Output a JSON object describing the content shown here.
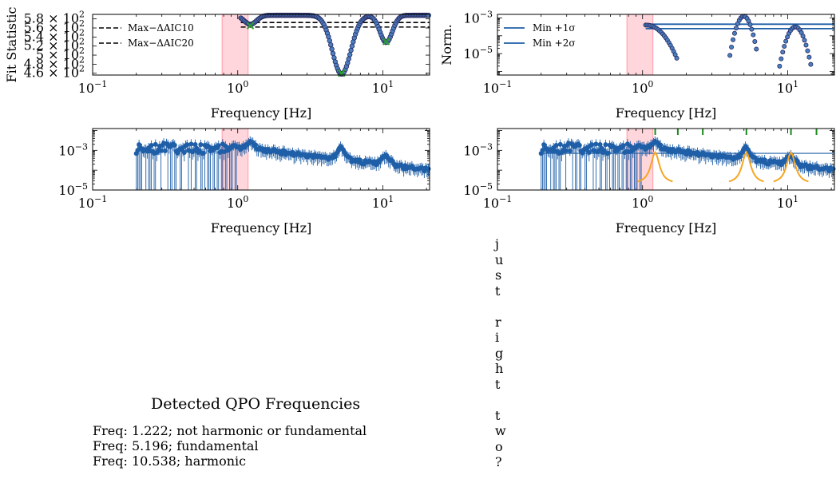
{
  "colors": {
    "data": "#1f5fa8",
    "marker_edge": "#2a2a60",
    "band": "#ffc0c8",
    "band_edge": "#ff8a9a",
    "dashed": "#000000",
    "cross": "#2ca02c",
    "orange": "#f5a623",
    "tick_green": "#1a8a1a"
  },
  "highlight_band_hz": [
    0.78,
    1.18
  ],
  "chart_data": [
    {
      "id": "fit-statistic",
      "type": "scatter",
      "xlabel": "Frequency [Hz]",
      "ylabel": "Fit Statistic",
      "xlim": [
        0.1,
        21
      ],
      "xscale": "log",
      "ylim": [
        456,
        590
      ],
      "x_ticks": [
        {
          "v": 0.1,
          "label": "10",
          "sup": "−1"
        },
        {
          "v": 1,
          "label": "10",
          "sup": "0"
        },
        {
          "v": 10,
          "label": "10",
          "sup": "1"
        }
      ],
      "y_ticks": [
        {
          "v": 460,
          "label": "4.6 × 10",
          "sup": "2"
        },
        {
          "v": 480,
          "label": "4.8 × 10",
          "sup": "2"
        },
        {
          "v": 500,
          "label": "5 × 10",
          "sup": "2"
        },
        {
          "v": 520,
          "label": "5.2 × 10",
          "sup": "2"
        },
        {
          "v": 540,
          "label": "5.4 × 10",
          "sup": "2"
        },
        {
          "v": 560,
          "label": "5.6 × 10",
          "sup": "2"
        },
        {
          "v": 580,
          "label": "5.8 × 10",
          "sup": "2"
        }
      ],
      "hlines": [
        {
          "name": "Max−ΔAIC10",
          "y": 572,
          "x_from": 1.05,
          "style": "dashed"
        },
        {
          "name": "Max−ΔAIC20",
          "y": 562,
          "x_from": 1.05,
          "style": "dashed"
        }
      ],
      "legend": [
        "Max−ΔAIC10",
        "Max−ΔAIC20"
      ],
      "legend_loc": "upper left",
      "minima": [
        {
          "x": 1.222,
          "y": 565
        },
        {
          "x": 5.196,
          "y": 460
        },
        {
          "x": 10.538,
          "y": 530
        }
      ]
    },
    {
      "id": "norm",
      "type": "scatter",
      "xlabel": "Frequency [Hz]",
      "ylabel": "Norm.",
      "xlim": [
        0.1,
        21
      ],
      "xscale": "log",
      "yscale": "log",
      "ylim_log10": [
        -6.2,
        -2.8
      ],
      "x_ticks": [
        {
          "v": 0.1,
          "label": "10",
          "sup": "−1"
        },
        {
          "v": 1,
          "label": "10",
          "sup": "0"
        },
        {
          "v": 10,
          "label": "10",
          "sup": "1"
        }
      ],
      "y_ticks": [
        {
          "v": -5,
          "label": "10",
          "sup": "−5"
        },
        {
          "v": -3,
          "label": "10",
          "sup": "−3"
        }
      ],
      "hlines": [
        {
          "name": "Min +1σ",
          "y_log10": -3.35,
          "x_from": 1.05
        },
        {
          "name": "Min +2σ",
          "y_log10": -3.6,
          "x_from": 1.05
        }
      ],
      "legend": [
        "Min +1σ",
        "Min +2σ"
      ],
      "legend_loc": "upper left"
    },
    {
      "id": "power-spectrum",
      "type": "scatter",
      "xlabel": "Frequency [Hz]",
      "xlim": [
        0.1,
        21
      ],
      "xscale": "log",
      "yscale": "log",
      "ylim_log10": [
        -5,
        -1.9
      ],
      "x_ticks": [
        {
          "v": 0.1,
          "label": "10",
          "sup": "−1"
        },
        {
          "v": 1,
          "label": "10",
          "sup": "0"
        },
        {
          "v": 10,
          "label": "10",
          "sup": "1"
        }
      ],
      "y_ticks": [
        {
          "v": -5,
          "label": "10",
          "sup": "−5"
        },
        {
          "v": -3,
          "label": "10",
          "sup": "−3"
        }
      ]
    },
    {
      "id": "power-spectrum-model",
      "type": "scatter",
      "xlabel": "Frequency [Hz]",
      "xlim": [
        0.1,
        21
      ],
      "xscale": "log",
      "yscale": "log",
      "ylim_log10": [
        -5,
        -1.9
      ],
      "x_ticks": [
        {
          "v": 0.1,
          "label": "10",
          "sup": "−1"
        },
        {
          "v": 1,
          "label": "10",
          "sup": "0"
        },
        {
          "v": 10,
          "label": "10",
          "sup": "1"
        }
      ],
      "y_ticks": [
        {
          "v": -5,
          "label": "10",
          "sup": "−5"
        },
        {
          "v": -3,
          "label": "10",
          "sup": "−3"
        }
      ],
      "qpo_markers_hz": [
        1.222,
        1.75,
        2.6,
        5.196,
        10.538,
        15.8
      ],
      "lorentzians_hz": [
        1.222,
        5.196,
        10.538
      ]
    }
  ],
  "qpo_panel": {
    "title": "Detected QPO Frequencies",
    "lines": [
      "Freq: 1.222; not harmonic or fundamental",
      "Freq: 5.196; fundamental",
      "Freq: 10.538; harmonic"
    ]
  },
  "side_note": "just right two?"
}
